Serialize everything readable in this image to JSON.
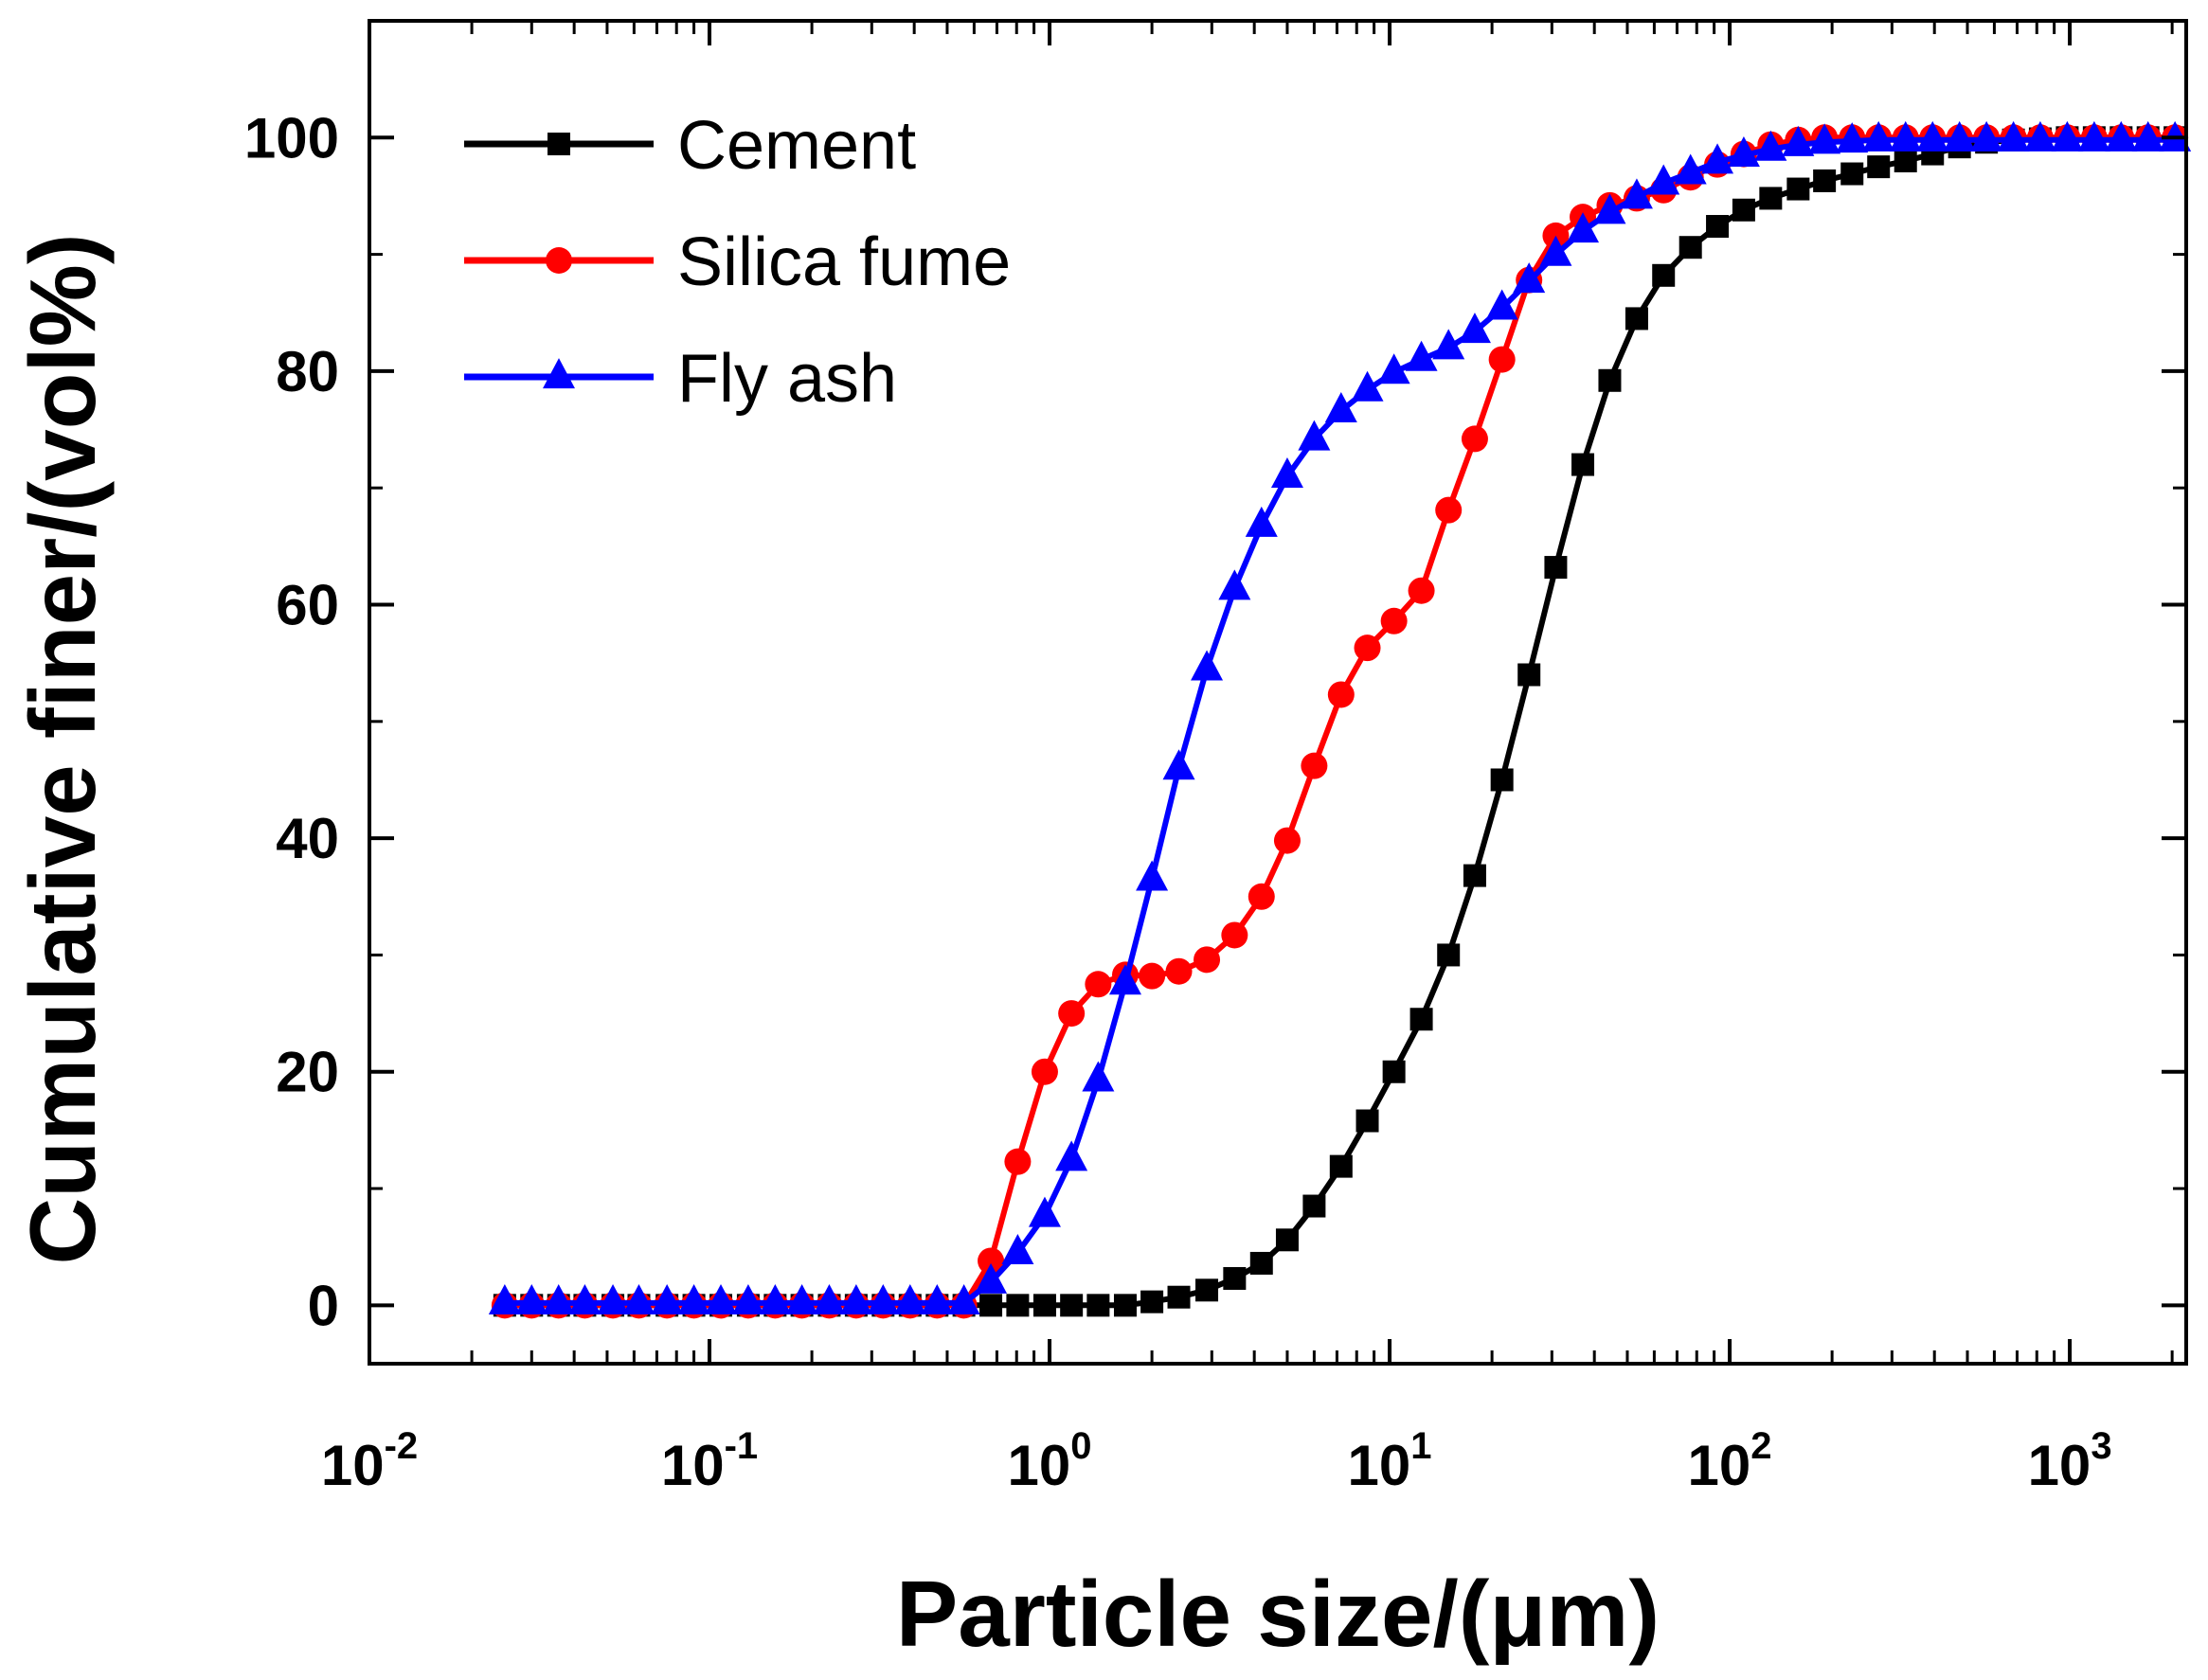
{
  "chart_data": {
    "type": "line",
    "title": "",
    "xlabel": "Particle size/(μm)",
    "ylabel": "Cumulative finer/(vol%)",
    "xscale": "log",
    "xlim": [
      0.01,
      2200
    ],
    "ylim": [
      -5,
      110
    ],
    "x_ticks": [
      {
        "value": 0.01,
        "base": "10",
        "exp": "-2"
      },
      {
        "value": 0.1,
        "base": "10",
        "exp": "-1"
      },
      {
        "value": 1,
        "base": "10",
        "exp": "0"
      },
      {
        "value": 10,
        "base": "10",
        "exp": "1"
      },
      {
        "value": 100,
        "base": "10",
        "exp": "2"
      },
      {
        "value": 1000,
        "base": "10",
        "exp": "3"
      }
    ],
    "y_ticks": [
      {
        "value": 0,
        "label": "0"
      },
      {
        "value": 20,
        "label": "20"
      },
      {
        "value": 40,
        "label": "40"
      },
      {
        "value": 60,
        "label": "60"
      },
      {
        "value": 80,
        "label": "80"
      },
      {
        "value": 100,
        "label": "100"
      }
    ],
    "legend_position": "top-left",
    "series": [
      {
        "name": "Cement",
        "color": "#000000",
        "marker": "square",
        "x": [
          0.025,
          0.03,
          0.036,
          0.043,
          0.052,
          0.062,
          0.075,
          0.09,
          0.108,
          0.13,
          0.156,
          0.187,
          0.225,
          0.27,
          0.324,
          0.389,
          0.467,
          0.56,
          0.672,
          0.806,
          0.968,
          1.16,
          1.39,
          1.67,
          2.0,
          2.4,
          2.9,
          3.5,
          4.2,
          5.0,
          6.0,
          7.2,
          8.6,
          10.3,
          12.4,
          14.9,
          17.8,
          21.4,
          25.7,
          30.8,
          37.0,
          44.4,
          53.3,
          63.9,
          76.7,
          92.0,
          110.0,
          132.0,
          159.0,
          190.0,
          229.0,
          274.0,
          329.0,
          395.0,
          474.0,
          569.0,
          683.0,
          819.0,
          983.0,
          1180.0,
          1416.0,
          1699.0,
          2039.0
        ],
        "values": [
          0,
          0,
          0,
          0,
          0,
          0,
          0,
          0,
          0,
          0,
          0,
          0,
          0,
          0,
          0,
          0,
          0,
          0,
          0,
          0,
          0,
          0,
          0,
          0,
          0.3,
          0.7,
          1.3,
          2.3,
          3.6,
          5.6,
          8.5,
          11.9,
          15.8,
          20.0,
          24.5,
          30.0,
          36.8,
          45.0,
          54.0,
          63.2,
          72.0,
          79.2,
          84.5,
          88.2,
          90.6,
          92.4,
          93.8,
          94.8,
          95.6,
          96.3,
          96.9,
          97.5,
          98.0,
          98.6,
          99.2,
          99.6,
          99.8,
          99.9,
          100,
          100,
          100,
          100,
          100
        ]
      },
      {
        "name": "Silica fume",
        "color": "#ff0000",
        "marker": "circle",
        "x": [
          0.025,
          0.03,
          0.036,
          0.043,
          0.052,
          0.062,
          0.075,
          0.09,
          0.108,
          0.13,
          0.156,
          0.187,
          0.225,
          0.27,
          0.324,
          0.389,
          0.467,
          0.56,
          0.672,
          0.806,
          0.968,
          1.16,
          1.39,
          1.67,
          2.0,
          2.4,
          2.9,
          3.5,
          4.2,
          5.0,
          6.0,
          7.2,
          8.6,
          10.3,
          12.4,
          14.9,
          17.8,
          21.4,
          25.7,
          30.8,
          37.0,
          44.4,
          53.3,
          63.9,
          76.7,
          92.0,
          110.0,
          132.0,
          159.0,
          190.0,
          229.0,
          274.0,
          329.0,
          395.0,
          474.0,
          569.0,
          683.0,
          819.0,
          983.0,
          1180.0,
          1416.0,
          1699.0,
          2039.0
        ],
        "values": [
          0,
          0,
          0,
          0,
          0,
          0,
          0,
          0,
          0,
          0,
          0,
          0,
          0,
          0,
          0,
          0,
          0,
          0,
          3.8,
          12.3,
          20.0,
          25.0,
          27.5,
          28.3,
          28.2,
          28.6,
          29.6,
          31.7,
          35.0,
          39.8,
          46.2,
          52.3,
          56.3,
          58.6,
          61.2,
          68.1,
          74.2,
          81.0,
          87.8,
          91.6,
          93.2,
          94.2,
          94.8,
          95.5,
          96.6,
          97.7,
          98.6,
          99.4,
          99.8,
          100,
          100,
          100,
          100,
          100,
          100,
          100,
          100,
          100,
          100,
          100,
          100,
          100,
          100
        ]
      },
      {
        "name": "Fly ash",
        "color": "#0000ff",
        "marker": "triangle",
        "x": [
          0.025,
          0.03,
          0.036,
          0.043,
          0.052,
          0.062,
          0.075,
          0.09,
          0.108,
          0.13,
          0.156,
          0.187,
          0.225,
          0.27,
          0.324,
          0.389,
          0.467,
          0.56,
          0.672,
          0.806,
          0.968,
          1.16,
          1.39,
          1.67,
          2.0,
          2.4,
          2.9,
          3.5,
          4.2,
          5.0,
          6.0,
          7.2,
          8.6,
          10.3,
          12.4,
          14.9,
          17.8,
          21.4,
          25.7,
          30.8,
          37.0,
          44.4,
          53.3,
          63.9,
          76.7,
          92.0,
          110.0,
          132.0,
          159.0,
          190.0,
          229.0,
          274.0,
          329.0,
          395.0,
          474.0,
          569.0,
          683.0,
          819.0,
          983.0,
          1180.0,
          1416.0,
          1699.0,
          2039.0
        ],
        "values": [
          0.2,
          0.2,
          0.2,
          0.2,
          0.2,
          0.2,
          0.2,
          0.2,
          0.2,
          0.2,
          0.2,
          0.2,
          0.2,
          0.2,
          0.2,
          0.2,
          0.2,
          0.2,
          2.0,
          4.5,
          7.7,
          12.5,
          19.3,
          27.6,
          36.5,
          46.0,
          54.5,
          61.4,
          66.8,
          71.0,
          74.2,
          76.6,
          78.4,
          79.9,
          81.0,
          82.0,
          83.4,
          85.4,
          87.7,
          90.0,
          92.0,
          93.6,
          94.9,
          96.1,
          97.0,
          97.9,
          98.5,
          99.0,
          99.4,
          99.6,
          99.7,
          99.8,
          99.8,
          99.8,
          99.8,
          99.8,
          99.8,
          99.8,
          99.8,
          99.8,
          99.8,
          99.8,
          99.8
        ]
      }
    ]
  }
}
